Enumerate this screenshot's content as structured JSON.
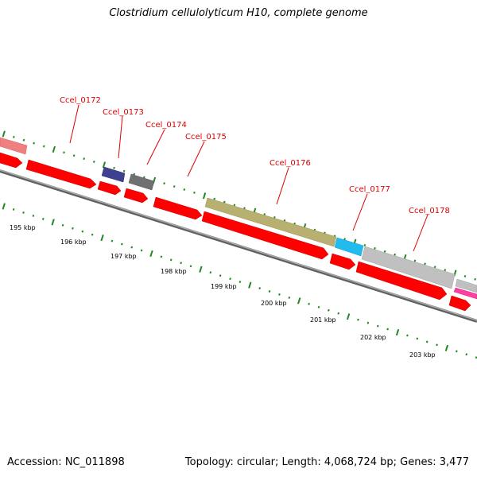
{
  "title": "Clostridium cellulolyticum H10, complete genome",
  "accession": "Accession: NC_011898",
  "summary": "Topology: circular; Length: 4,068,724 bp; Genes: 3,477",
  "colors": {
    "cds": "#ff0000",
    "backbone": "#808080",
    "tick": "#228822",
    "label": "#dd0000"
  },
  "genes": [
    {
      "id": "Ccel_0172",
      "color": "#8080c0"
    },
    {
      "id": "Ccel_0173",
      "color": "#404090"
    },
    {
      "id": "Ccel_0174",
      "color": "#707070"
    },
    {
      "id": "Ccel_0175",
      "color": "#ff0000"
    },
    {
      "id": "Ccel_0176",
      "color": "#b8b070"
    },
    {
      "id": "Ccel_0177",
      "color": "#22bbee"
    },
    {
      "id": "Ccel_0178",
      "color": "#c0c0c0"
    }
  ],
  "kbp_ticks": [
    "195 kbp",
    "196 kbp",
    "197 kbp",
    "198 kbp",
    "199 kbp",
    "200 kbp",
    "201 kbp",
    "202 kbp",
    "203 kbp"
  ]
}
